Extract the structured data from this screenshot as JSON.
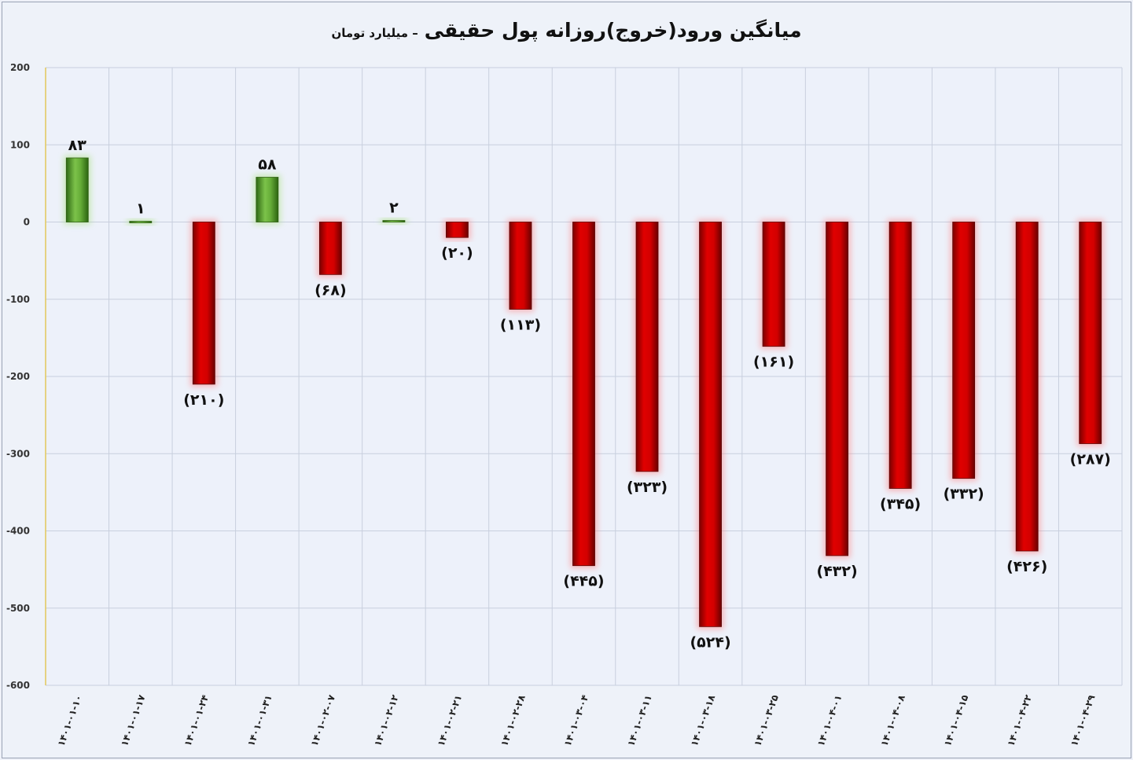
{
  "chart_data": {
    "type": "bar",
    "title": "میانگین ورود(خروج)روزانه پول حقیقی",
    "subtitle": "– میلیارد تومان",
    "categories": [
      "۱۴۰۱-۰۱-۱۰",
      "۱۴۰۱-۰۱-۱۷",
      "۱۴۰۱-۰۱-۲۴",
      "۱۴۰۱-۰۱-۳۱",
      "۱۴۰۱-۰۲-۰۷",
      "۱۴۰۱-۰۲-۱۲",
      "۱۴۰۱-۰۲-۲۱",
      "۱۴۰۱-۰۲-۲۸",
      "۱۴۰۱-۰۳-۰۴",
      "۱۴۰۱-۰۳-۱۱",
      "۱۴۰۱-۰۳-۱۸",
      "۱۴۰۱-۰۳-۲۵",
      "۱۴۰۱-۰۴-۰۱",
      "۱۴۰۱-۰۴-۰۸",
      "۱۴۰۱-۰۴-۱۵",
      "۱۴۰۱-۰۴-۲۲",
      "۱۴۰۱-۰۴-۲۹"
    ],
    "values": [
      83,
      1,
      -210,
      58,
      -68,
      2,
      -20,
      -113,
      -445,
      -323,
      -524,
      -161,
      -432,
      -345,
      -332,
      -426,
      -287
    ],
    "data_labels": [
      "۸۳",
      "۱",
      "(۲۱۰)",
      "۵۸",
      "(۶۸)",
      "۲",
      "(۲۰)",
      "(۱۱۳)",
      "(۴۴۵)",
      "(۳۲۳)",
      "(۵۲۴)",
      "(۱۶۱)",
      "(۴۳۲)",
      "(۳۴۵)",
      "(۳۳۲)",
      "(۴۲۶)",
      "(۲۸۷)"
    ],
    "ylim": [
      -600,
      200
    ],
    "yticks": [
      200,
      100,
      0,
      -100,
      -200,
      -300,
      -400,
      -500,
      -600
    ],
    "ytick_labels": [
      "200",
      "100",
      "0",
      "-100",
      "-200",
      "-300",
      "-400",
      "-500",
      "-600"
    ],
    "grid": true,
    "positive_color": "#5aa032",
    "negative_color": "#cc0000"
  }
}
